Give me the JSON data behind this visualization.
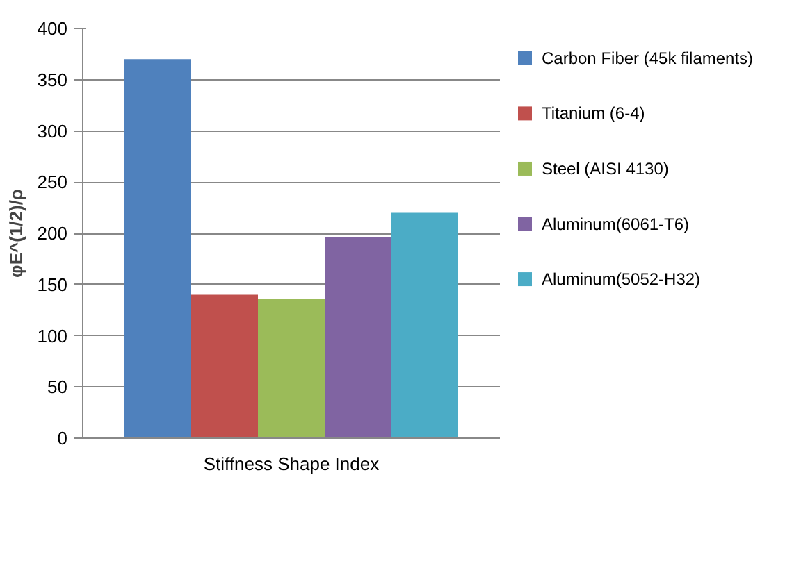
{
  "chart_data": {
    "type": "bar",
    "ylabel": "φE^(1/2)/ρ",
    "categories": [
      "Stiffness Shape Index"
    ],
    "series": [
      {
        "name": "Carbon Fiber (45k filaments)",
        "color": "#4f81bd",
        "values": [
          370
        ]
      },
      {
        "name": "Titanium (6-4)",
        "color": "#c0504d",
        "values": [
          140
        ]
      },
      {
        "name": "Steel (AISI 4130)",
        "color": "#9bbb59",
        "values": [
          136
        ]
      },
      {
        "name": "Aluminum(6061-T6)",
        "color": "#8064a2",
        "values": [
          196
        ]
      },
      {
        "name": "Aluminum(5052-H32)",
        "color": "#4bacc6",
        "values": [
          220
        ]
      }
    ],
    "ylim": [
      0,
      400
    ],
    "yticks": [
      0,
      50,
      100,
      150,
      200,
      250,
      300,
      350,
      400
    ],
    "grid": "y",
    "legend": "right"
  }
}
